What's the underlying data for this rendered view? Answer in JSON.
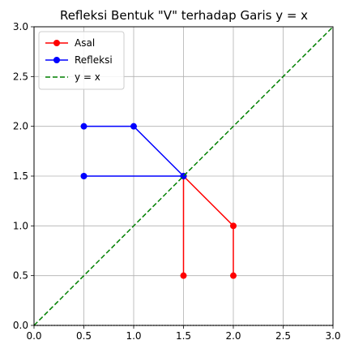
{
  "chart_data": {
    "type": "line",
    "title": "Refleksi Bentuk \"V\" terhadap Garis y = x",
    "xlabel": "",
    "ylabel": "",
    "xlim": [
      0.0,
      3.0
    ],
    "ylim": [
      0.0,
      3.0
    ],
    "x_ticks": [
      "0.0",
      "0.5",
      "1.0",
      "1.5",
      "2.0",
      "2.5",
      "3.0"
    ],
    "y_ticks": [
      "0.0",
      "0.5",
      "1.0",
      "1.5",
      "2.0",
      "2.5",
      "3.0"
    ],
    "grid": true,
    "legend_position": "top-left",
    "series": [
      {
        "name": "Asal",
        "color": "#ff0000",
        "style": "solid",
        "markers": true,
        "segments": [
          [
            [
              1.5,
              0.5
            ],
            [
              1.5,
              1.5
            ],
            [
              2.0,
              1.0
            ],
            [
              2.0,
              0.5
            ]
          ]
        ]
      },
      {
        "name": "Refleksi",
        "color": "#0000ff",
        "style": "solid",
        "markers": true,
        "segments": [
          [
            [
              0.5,
              1.5
            ],
            [
              1.5,
              1.5
            ],
            [
              1.0,
              2.0
            ],
            [
              0.5,
              2.0
            ]
          ]
        ]
      },
      {
        "name": "y = x",
        "color": "#008000",
        "style": "dashed",
        "markers": false,
        "segments": [
          [
            [
              0.0,
              0.0
            ],
            [
              3.0,
              3.0
            ]
          ]
        ]
      }
    ],
    "reference_lines": [
      {
        "axis": "y",
        "value": 0.0,
        "color": "#000000",
        "style": "dotted"
      }
    ]
  }
}
